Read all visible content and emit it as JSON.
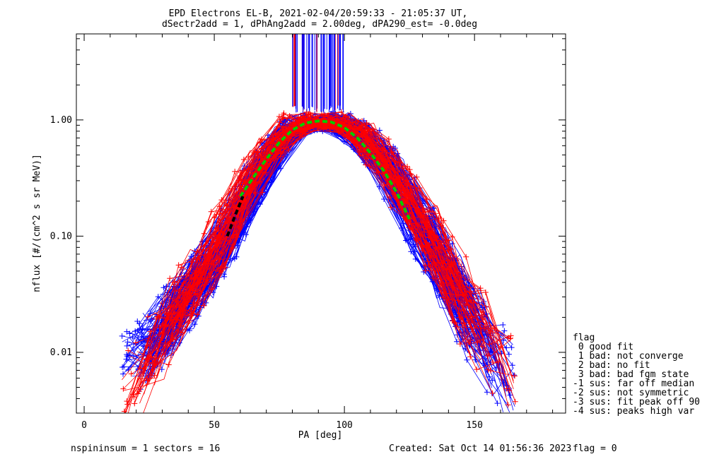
{
  "chart_data": {
    "type": "scatter",
    "title": "EPD Electrons EL-B, 2021-02-04/20:59:33 - 21:05:37 UT,",
    "subtitle": "dSectr2add = 1, dPhAng2add = 2.00deg, dPA290_est=  -0.0deg",
    "xlabel": "PA [deg]",
    "ylabel": "nflux [#/(cm^2 s sr MeV)]",
    "xlim": [
      -3,
      185
    ],
    "ylim": [
      0.003,
      5.5
    ],
    "yscale": "log",
    "x_ticks": [
      0,
      50,
      100,
      150
    ],
    "x_tick_labels": [
      "0",
      "50",
      "100",
      "150"
    ],
    "y_ticks": [
      0.01,
      0.1,
      1.0
    ],
    "y_tick_labels": [
      "0.01",
      "0.10",
      "1.00"
    ],
    "series": [
      {
        "color": "#0000ff",
        "marker": "+",
        "style": "line+marker",
        "sample_x": [
          17,
          25,
          35,
          45,
          55,
          62,
          70,
          80,
          90,
          100,
          110,
          118,
          125,
          135,
          145,
          155,
          162
        ],
        "sample_y": [
          0.008,
          0.012,
          0.022,
          0.045,
          0.1,
          0.2,
          0.42,
          0.86,
          0.97,
          0.9,
          0.58,
          0.34,
          0.17,
          0.07,
          0.025,
          0.012,
          0.006
        ]
      },
      {
        "color": "#ff0000",
        "marker": "+",
        "style": "line+marker",
        "sample_x": [
          18,
          25,
          35,
          45,
          55,
          62,
          70,
          80,
          90,
          100,
          110,
          118,
          125,
          135,
          145,
          155,
          163
        ],
        "sample_y": [
          0.005,
          0.01,
          0.02,
          0.05,
          0.12,
          0.26,
          0.5,
          0.9,
          0.98,
          0.93,
          0.62,
          0.36,
          0.19,
          0.08,
          0.03,
          0.012,
          0.007
        ]
      },
      {
        "color": "#00cc00",
        "style": "dashed-fit",
        "sample_x": [
          60,
          65,
          70,
          75,
          80,
          85,
          90,
          95,
          100,
          105,
          110,
          115,
          120,
          125
        ],
        "sample_y": [
          0.22,
          0.32,
          0.46,
          0.64,
          0.82,
          0.94,
          0.98,
          0.96,
          0.86,
          0.7,
          0.52,
          0.37,
          0.24,
          0.14
        ]
      },
      {
        "color": "#000000",
        "style": "dashed-fit",
        "sample_x": [
          55,
          58,
          61
        ],
        "sample_y": [
          0.1,
          0.15,
          0.22
        ]
      }
    ],
    "legend": {
      "title": "flag",
      "entries": [
        " 0 good fit",
        " 1 bad: not converge",
        " 2 bad: no fit",
        " 3 bad: bad fgm state",
        "-1 sus: far off median",
        "-2 sus: not symmetric",
        "-3 sus: fit peak off 90",
        "-4 sus: peaks high var"
      ],
      "placement": "right"
    },
    "grid": false
  },
  "footer": {
    "left": "nspininsum =  1  sectors = 16",
    "created": "Created: Sat Oct 14 01:56:36 2023",
    "flag": "flag = 0"
  }
}
